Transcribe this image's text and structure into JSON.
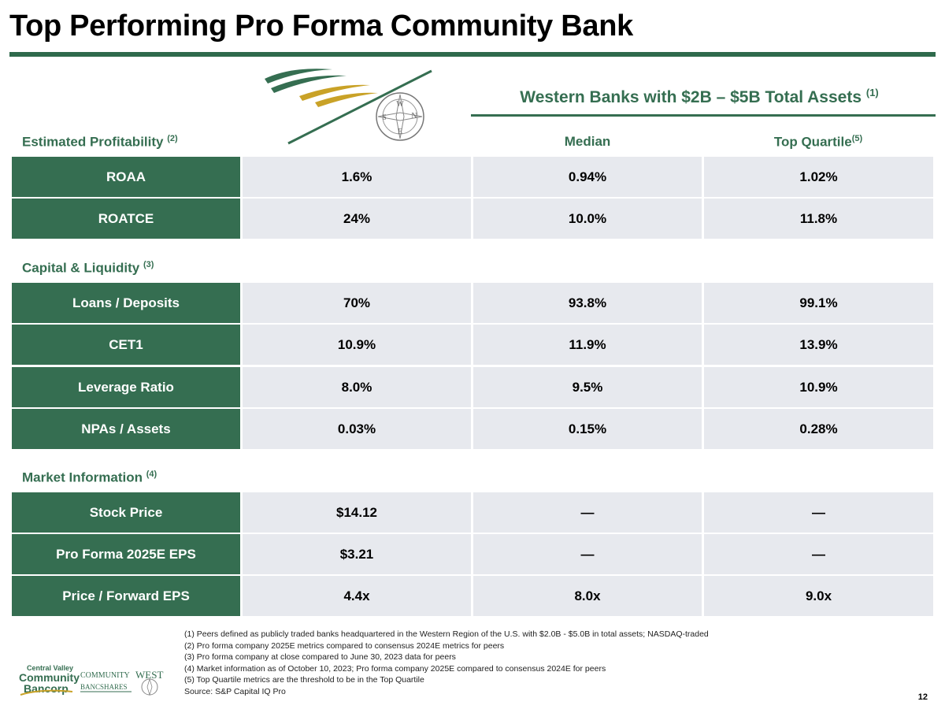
{
  "title": "Top Performing Pro Forma Community Bank",
  "group_heading": {
    "text": "Western Banks with $2B – $5B Total Assets",
    "note": "(1)"
  },
  "columns": {
    "median": "Median",
    "top_quartile": "Top Quartile",
    "top_quartile_note": "(5)"
  },
  "sections": [
    {
      "label": "Estimated Profitability",
      "note": "(2)",
      "rows": [
        {
          "label": "ROAA",
          "pro_forma": "1.6%",
          "median": "0.94%",
          "top_quartile": "1.02%"
        },
        {
          "label": "ROATCE",
          "pro_forma": "24%",
          "median": "10.0%",
          "top_quartile": "11.8%"
        }
      ]
    },
    {
      "label": "Capital & Liquidity",
      "note": "(3)",
      "rows": [
        {
          "label": "Loans / Deposits",
          "pro_forma": "70%",
          "median": "93.8%",
          "top_quartile": "99.1%"
        },
        {
          "label": "CET1",
          "pro_forma": "10.9%",
          "median": "11.9%",
          "top_quartile": "13.9%"
        },
        {
          "label": "Leverage Ratio",
          "pro_forma": "8.0%",
          "median": "9.5%",
          "top_quartile": "10.9%"
        },
        {
          "label": "NPAs / Assets",
          "pro_forma": "0.03%",
          "median": "0.15%",
          "top_quartile": "0.28%"
        }
      ]
    },
    {
      "label": "Market Information",
      "note": "(4)",
      "rows": [
        {
          "label": "Stock Price",
          "pro_forma": "$14.12",
          "median": "—",
          "top_quartile": "—"
        },
        {
          "label": "Pro Forma 2025E EPS",
          "pro_forma": "$3.21",
          "median": "—",
          "top_quartile": "—"
        },
        {
          "label": "Price / Forward EPS",
          "pro_forma": "4.4x",
          "median": "8.0x",
          "top_quartile": "9.0x"
        }
      ]
    }
  ],
  "footnotes": [
    "(1) Peers defined as publicly traded banks headquartered in the Western Region of the U.S. with $2.0B - $5.0B in total assets; NASDAQ-traded",
    "(2) Pro forma company 2025E metrics compared to consensus 2024E metrics for peers",
    "(3) Pro forma company at close compared to June 30, 2023 data for peers",
    "(4) Market information as of October 10, 2023; Pro forma company 2025E compared to consensus 2024E for peers",
    "(5) Top Quartile metrics are the threshold to be in the Top Quartile",
    "Source: S&P Capital IQ Pro"
  ],
  "logos": {
    "central_valley": [
      "Central Valley",
      "Community",
      "Bancorp"
    ],
    "community_west": [
      "COMMUNITY",
      "WEST",
      "BANCSHARES"
    ],
    "compass_letters": [
      "W",
      "N",
      "E",
      "S"
    ]
  },
  "page_number": "12",
  "colors": {
    "brand_green": "#356e51",
    "gold": "#c9a227",
    "cell_gray": "#e7e9ee"
  }
}
